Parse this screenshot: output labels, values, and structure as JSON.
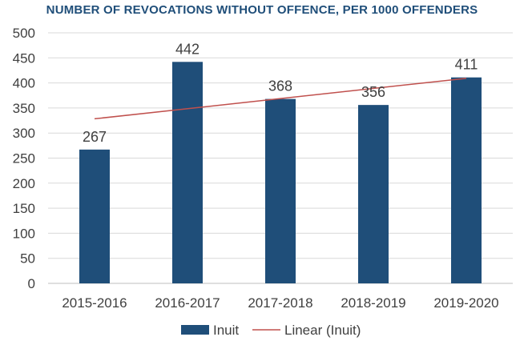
{
  "chart_data": {
    "type": "bar",
    "title": "NUMBER OF REVOCATIONS WITHOUT OFFENCE, PER 1000 OFFENDERS",
    "categories": [
      "2015-2016",
      "2016-2017",
      "2017-2018",
      "2018-2019",
      "2019-2020"
    ],
    "series": [
      {
        "name": "Inuit",
        "values": [
          267,
          442,
          368,
          356,
          411
        ],
        "color": "#1f4e79"
      }
    ],
    "trendline": {
      "name": "Linear (Inuit)",
      "type": "linear",
      "of_series": "Inuit",
      "color": "#c0504d"
    },
    "xlabel": "",
    "ylabel": "",
    "ylim": [
      0,
      500
    ],
    "yticks": [
      0,
      50,
      100,
      150,
      200,
      250,
      300,
      350,
      400,
      450,
      500
    ],
    "grid": true,
    "legend": {
      "position": "bottom",
      "entries": [
        "Inuit",
        "Linear (Inuit)"
      ]
    },
    "data_labels": true
  }
}
